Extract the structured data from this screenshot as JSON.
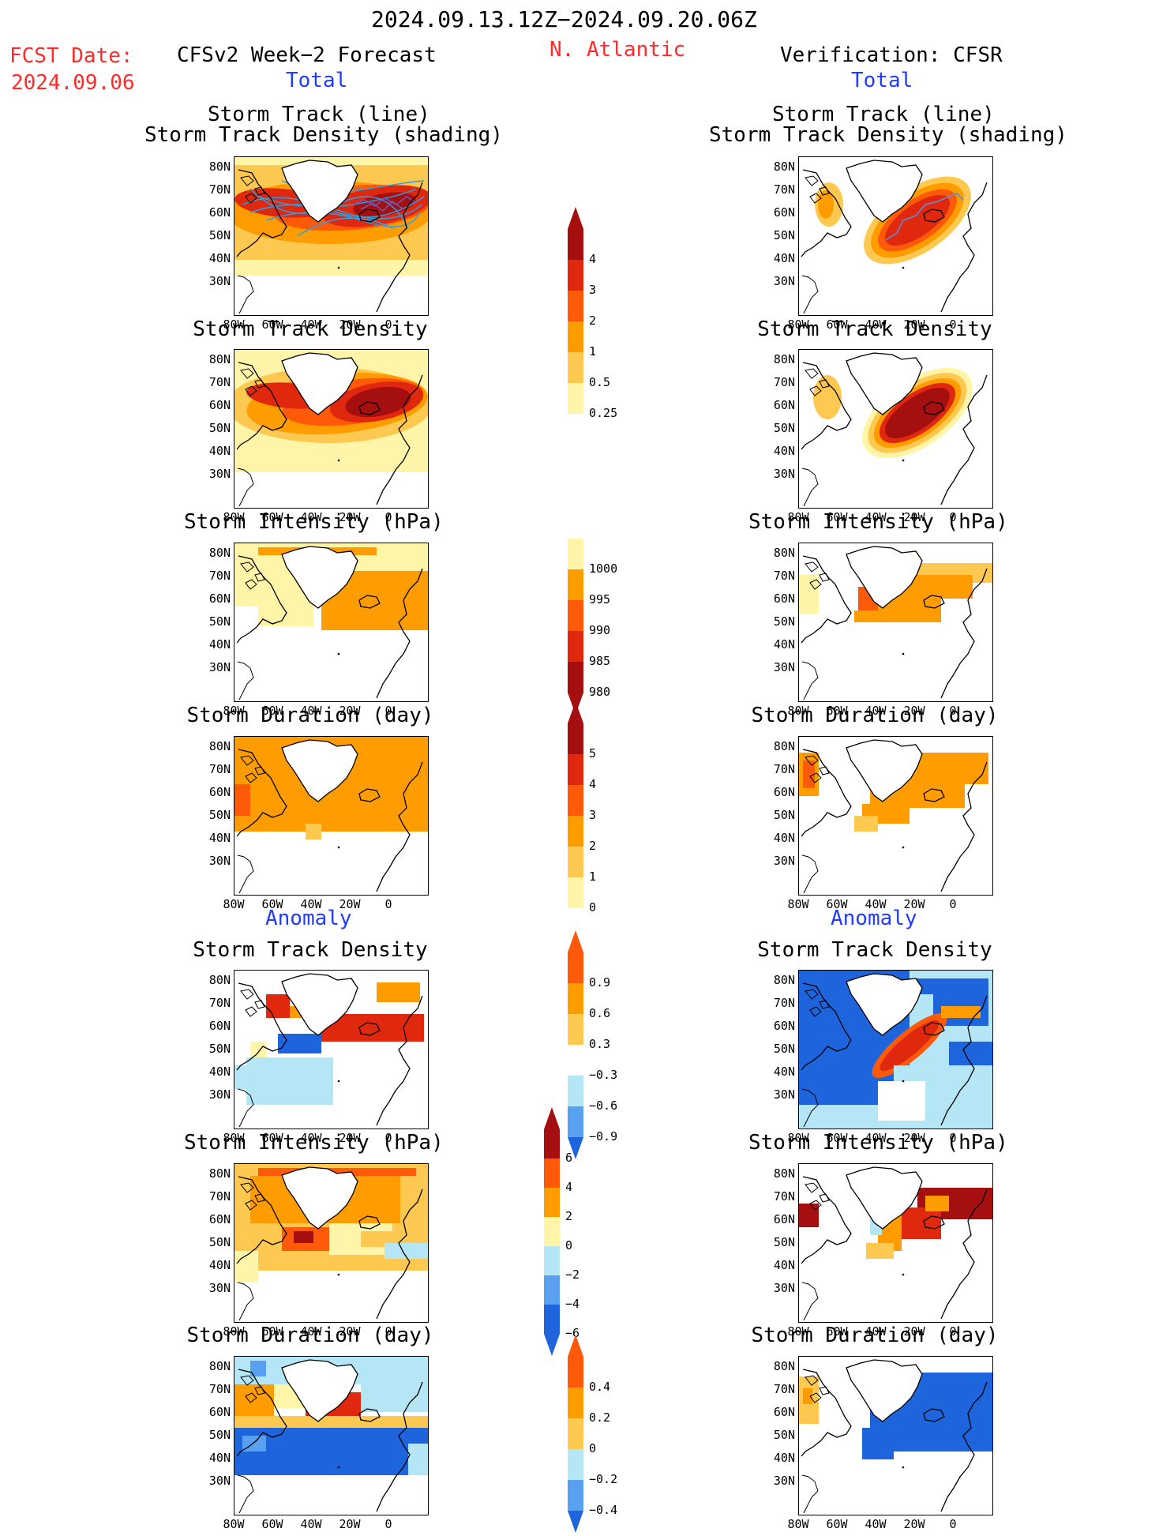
{
  "header": {
    "period": "2024.09.13.12Z−2024.09.20.06Z",
    "fcst_date_label": "FCST Date:",
    "fcst_date_value": "2024.09.06",
    "model_label": "CFSv2 Week−2 Forecast",
    "region": "N. Atlantic",
    "verification_label": "Verification: CFSR"
  },
  "sections": {
    "total": "Total",
    "anomaly": "Anomaly"
  },
  "panel_titles": {
    "track_line": "Storm Track (line)",
    "track_density_shading": "Storm Track Density (shading)",
    "track_density": "Storm Track Density",
    "intensity": "Storm Intensity (hPa)",
    "duration": "Storm Duration (day)"
  },
  "axes": {
    "lat_labels": [
      "80N",
      "70N",
      "60N",
      "50N",
      "40N",
      "30N"
    ],
    "lon_labels": [
      "80W",
      "60W",
      "40W",
      "20W",
      "0"
    ]
  },
  "colorbars": {
    "track_density_total": [
      "4",
      "3",
      "2",
      "1",
      "0.5",
      "0.25"
    ],
    "intensity_total": [
      "1000",
      "995",
      "990",
      "985",
      "980"
    ],
    "duration_total": [
      "5",
      "4",
      "3",
      "2",
      "1",
      "0"
    ],
    "track_density_anom": [
      "0.9",
      "0.6",
      "0.3",
      "−0.3",
      "−0.6",
      "−0.9"
    ],
    "intensity_anom": [
      "6",
      "4",
      "2",
      "0",
      "−2",
      "−4",
      "−6"
    ],
    "duration_anom": [
      "0.4",
      "0.2",
      "0",
      "−0.2",
      "−0.4"
    ]
  },
  "colors": {
    "dark_red": "#a50f0f",
    "red": "#e0280f",
    "orange_red": "#ff5a0a",
    "orange": "#ff9c00",
    "light_orange": "#ffc850",
    "pale_yellow": "#fff5a8",
    "light_blue": "#b4e6f5",
    "mid_blue": "#5aa0f0",
    "blue": "#1e64dc",
    "track_line": "#2aa0e6"
  }
}
